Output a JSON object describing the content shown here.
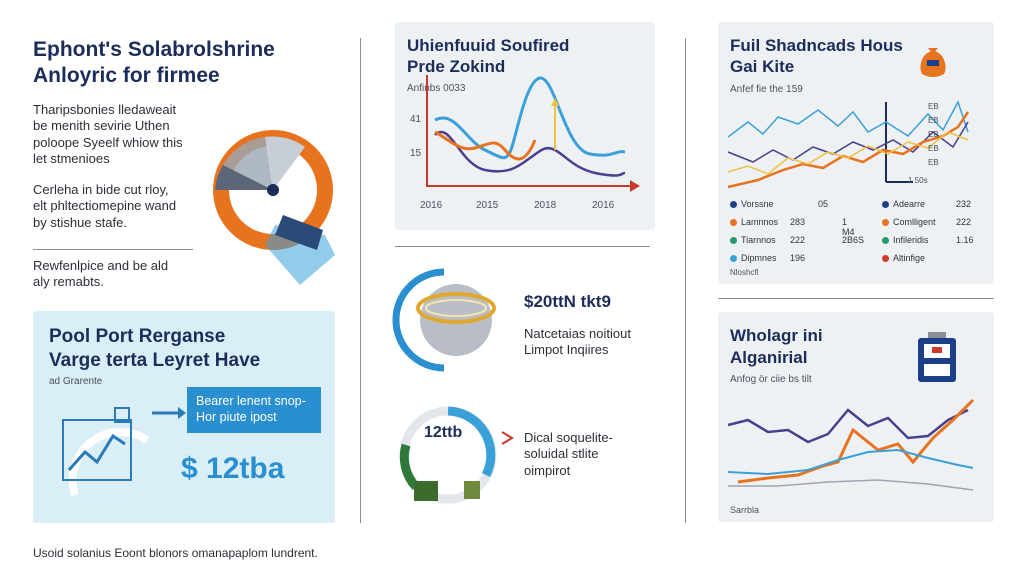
{
  "left": {
    "title_l1": "Ephont's Solabrolshrine",
    "title_l2": "Anloyric for firmee",
    "para1_l1": "Tharipsbonies lledaweait",
    "para1_l2": "be menith sevirie Uthen",
    "para1_l3": "poloope Syeelf whiow this",
    "para1_l4": "let stmenioes",
    "para2_l1": "Cerleha in bide cut rloy,",
    "para2_l2": "elt phltectiomepine wand",
    "para2_l3": "by stishue stafe.",
    "para3_l1": "Rewfenlpice and be ald",
    "para3_l2": "aly remabts."
  },
  "bluepanel": {
    "title_l1": "Pool Port Rerganse",
    "title_l2": "Varge terta Leyret Have",
    "sub": "ad Grarente",
    "callout_l1": "Bearer lenent snop-",
    "callout_l2": "Hor piute ipost",
    "big_value": "$ 12tba"
  },
  "chart1": {
    "title_l1": "Uhienfuuid Soufired",
    "title_l2": "Prde Zokind",
    "sub": "Anfinbs 0033",
    "y_labels": [
      "41",
      "15"
    ],
    "x_labels": [
      "2016",
      "2015",
      "2018",
      "2016"
    ]
  },
  "chart2": {
    "title_l1": "Fuil Shadncads Hous",
    "title_l2": "Gai Kite",
    "sub": "Anfef fie the 159",
    "r_labels": [
      "EB",
      "EB",
      "EB",
      "EB",
      "EB",
      "EB"
    ],
    "bottom_label": "1 50s",
    "legend": [
      {
        "label": "Vorssne",
        "v1": "05",
        "v2": "",
        "color": "#1c3f8a"
      },
      {
        "label": "Lamnnos",
        "v1": "283",
        "v2": "1 M4",
        "color": "#e8731e"
      },
      {
        "label": "Tiarnnos",
        "v1": "222",
        "v2": "2B6S",
        "color": "#2a9a6e"
      },
      {
        "label": "Dipmnes",
        "v1": "196",
        "v2": "",
        "color": "#3aa0d8"
      }
    ],
    "legend_r": [
      {
        "label": "Adearre",
        "v": "232",
        "color": "#1c3f8a"
      },
      {
        "label": "Comlligent",
        "v": "222",
        "color": "#e8731e"
      },
      {
        "label": "Infileridis",
        "v": "1.16",
        "color": "#2a9a6e"
      },
      {
        "label": "Altinfige",
        "v": "",
        "color": "#d03a2a"
      }
    ],
    "footer": "Nloshcfl"
  },
  "middle": {
    "big_value": "$20ttN tkt9",
    "lbl1_l1": "Natcetaias noitiout",
    "lbl1_l2": "Limpot Inqiires",
    "ring_value": "12ttb",
    "lbl2_l1": "Dical soquelite-",
    "lbl2_l2": "soluidal stlite",
    "lbl2_l3": "oimpirot"
  },
  "chart3": {
    "title_l1": "Wholagr ini",
    "title_l2": "Alganirial",
    "sub": "Anfog ör ciie bs tilt",
    "footer": "Sarrbla"
  },
  "footer": "Usoid solanius Eoont blonors omanapaplom lundrent.",
  "colors": {
    "navy": "#1c2d5a",
    "orange": "#e8731e",
    "teal": "#3aa0d8",
    "purple": "#4a3f8f",
    "panel_blue": "#d9eef7",
    "panel_gray": "#eef1f4"
  }
}
